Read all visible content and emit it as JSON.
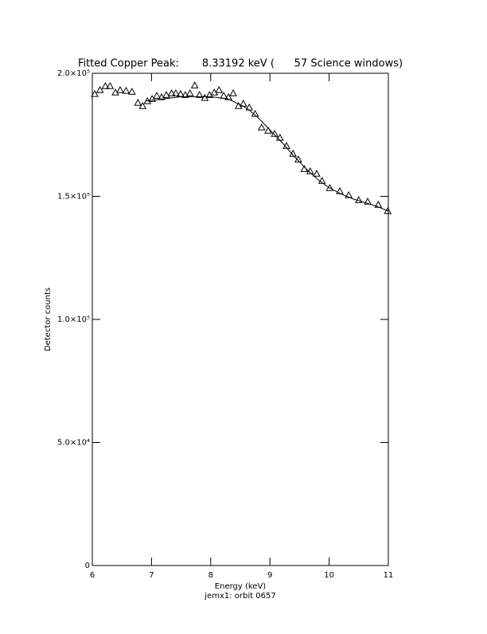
{
  "chart_data": {
    "type": "scatter",
    "title": "Fitted Copper Peak:       8.33192 keV (      57 Science windows)",
    "xlabel": "Energy (keV)",
    "ylabel": "Detector counts",
    "footnote": "jemx1: orbit 0657",
    "xlim": [
      6,
      11
    ],
    "xticks": [
      6,
      7,
      8,
      9,
      10,
      11
    ],
    "ylim": [
      0,
      200000
    ],
    "yticks": [
      0,
      {
        "value": 50000,
        "label": "5.0×10⁴"
      },
      {
        "value": 100000,
        "label": "1.0×10⁵"
      },
      {
        "value": 150000,
        "label": "1.5×10⁵"
      },
      {
        "value": 200000,
        "label": "2.0×10⁵"
      }
    ],
    "color": "#000000",
    "series": [
      {
        "style": "markers",
        "x": [
          6.04,
          6.13,
          6.22,
          6.3,
          6.39,
          6.47,
          6.57,
          6.67,
          6.77,
          6.85,
          6.93,
          7.01,
          7.09,
          7.17,
          7.25,
          7.34,
          7.41,
          7.49,
          7.57,
          7.65,
          7.73,
          7.81,
          7.9,
          7.98,
          8.06,
          8.14,
          8.22,
          8.3,
          8.38,
          8.47,
          8.55,
          8.65,
          8.75,
          8.86,
          8.97,
          9.08,
          9.17,
          9.28,
          9.39,
          9.48,
          9.58,
          9.68,
          9.79,
          9.88,
          10.01,
          10.18,
          10.33,
          10.5,
          10.65,
          10.83,
          10.99
        ],
        "values": [
          191600,
          193200,
          194800,
          194800,
          192200,
          193200,
          192900,
          192500,
          188000,
          186700,
          188700,
          189600,
          190900,
          190300,
          191200,
          191900,
          191900,
          191600,
          191200,
          191900,
          195100,
          191200,
          190000,
          191200,
          192200,
          193200,
          190900,
          190300,
          191900,
          186700,
          187700,
          186100,
          183500,
          178000,
          176700,
          175400,
          173800,
          170500,
          167300,
          165000,
          161100,
          160200,
          159200,
          156300,
          153400,
          152100,
          150500,
          148500,
          147900,
          146600,
          144000
        ]
      },
      {
        "style": "line",
        "x": [
          6.9,
          7.0,
          7.5,
          8.0,
          8.3,
          8.6,
          8.8,
          9.0,
          9.2,
          9.4,
          9.6,
          9.8,
          10.0,
          10.2,
          10.4,
          10.6,
          10.8,
          11.0
        ],
        "values": [
          188700,
          189000,
          190500,
          190500,
          189500,
          186000,
          182000,
          177000,
          172000,
          166500,
          161500,
          157000,
          153500,
          151000,
          149000,
          147500,
          146000,
          144000
        ]
      }
    ]
  }
}
